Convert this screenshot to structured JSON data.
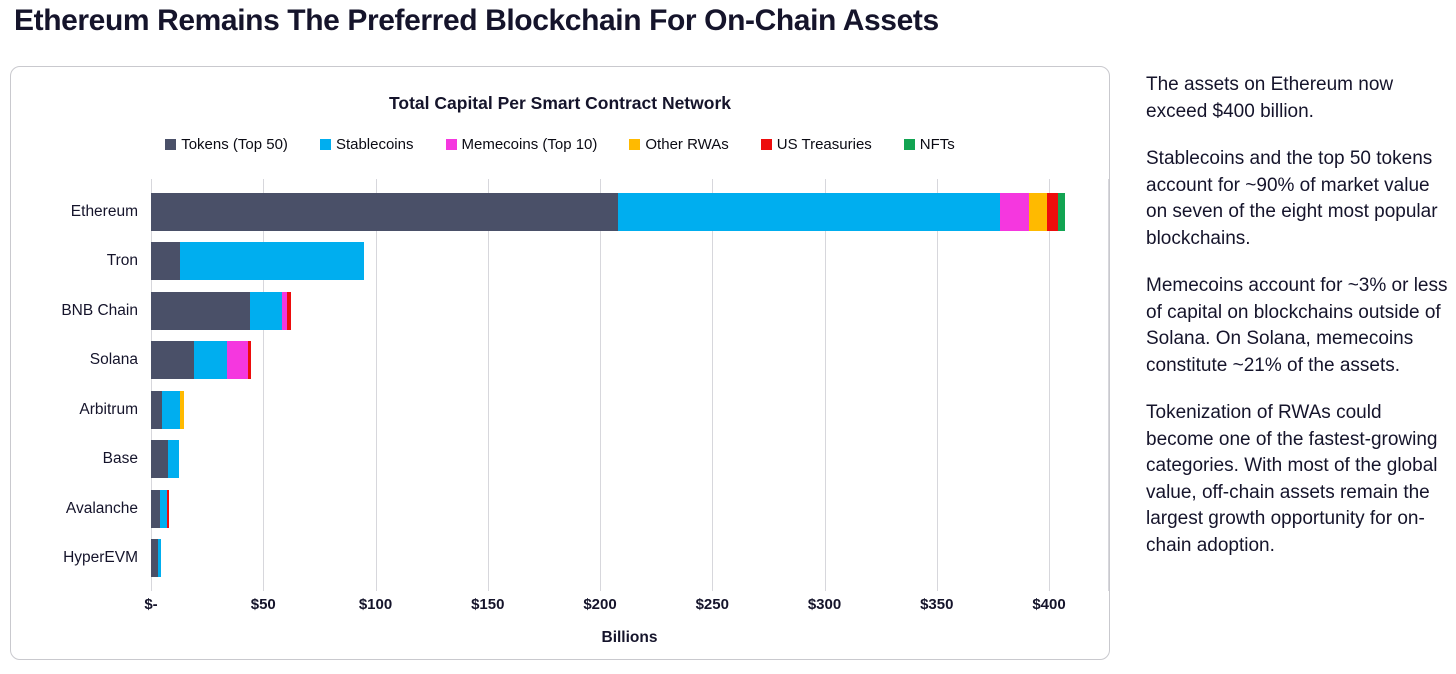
{
  "page_title": "Ethereum Remains The Preferred Blockchain For On-Chain Assets",
  "chart_data": {
    "type": "bar",
    "orientation": "horizontal",
    "stacked": true,
    "title": "Total Capital Per Smart Contract Network",
    "xlabel": "Billions",
    "categories": [
      "Ethereum",
      "Tron",
      "BNB Chain",
      "Solana",
      "Arbitrum",
      "Base",
      "Avalanche",
      "HyperEVM"
    ],
    "series": [
      {
        "name": "Tokens (Top 50)",
        "color": "#4A5068",
        "values": [
          208,
          13,
          44,
          19,
          5,
          7.5,
          4,
          3
        ]
      },
      {
        "name": "Stablecoins",
        "color": "#00AEEF",
        "values": [
          170,
          82,
          14.5,
          15,
          8,
          5,
          3,
          1.5
        ]
      },
      {
        "name": "Memecoins (Top 10)",
        "color": "#F537DF",
        "values": [
          13,
          0,
          2,
          9,
          0,
          0,
          0,
          0
        ]
      },
      {
        "name": "Other RWAs",
        "color": "#FFBA00",
        "values": [
          8,
          0,
          0,
          0,
          1.5,
          0,
          0,
          0
        ]
      },
      {
        "name": "US Treasuries",
        "color": "#ED0C0C",
        "values": [
          5,
          0,
          2,
          1.5,
          0,
          0,
          1,
          0
        ]
      },
      {
        "name": "NFTs",
        "color": "#12A452",
        "values": [
          3,
          0,
          0,
          0,
          0,
          0,
          0,
          0
        ]
      }
    ],
    "x_ticks": [
      "$-",
      "$50",
      "$100",
      "$150",
      "$200",
      "$250",
      "$300",
      "$350",
      "$400"
    ],
    "x_tick_values": [
      0,
      50,
      100,
      150,
      200,
      250,
      300,
      350,
      400
    ],
    "xlim": [
      0,
      400
    ],
    "grid": true,
    "legend_position": "top"
  },
  "sidebar": {
    "paragraphs": [
      "The assets on Ethereum now exceed $400 billion.",
      "Stablecoins and the top 50 tokens account for ~90% of market value on seven of the eight most popular blockchains.",
      "Memecoins account for ~3% or less of capital on blockchains outside of Solana. On Solana, memecoins constitute ~21% of the assets.",
      "Tokenization of RWAs could become one of the fastest-growing categories. With most of the global value, off-chain assets remain the largest growth opportunity for on-chain adoption."
    ]
  }
}
